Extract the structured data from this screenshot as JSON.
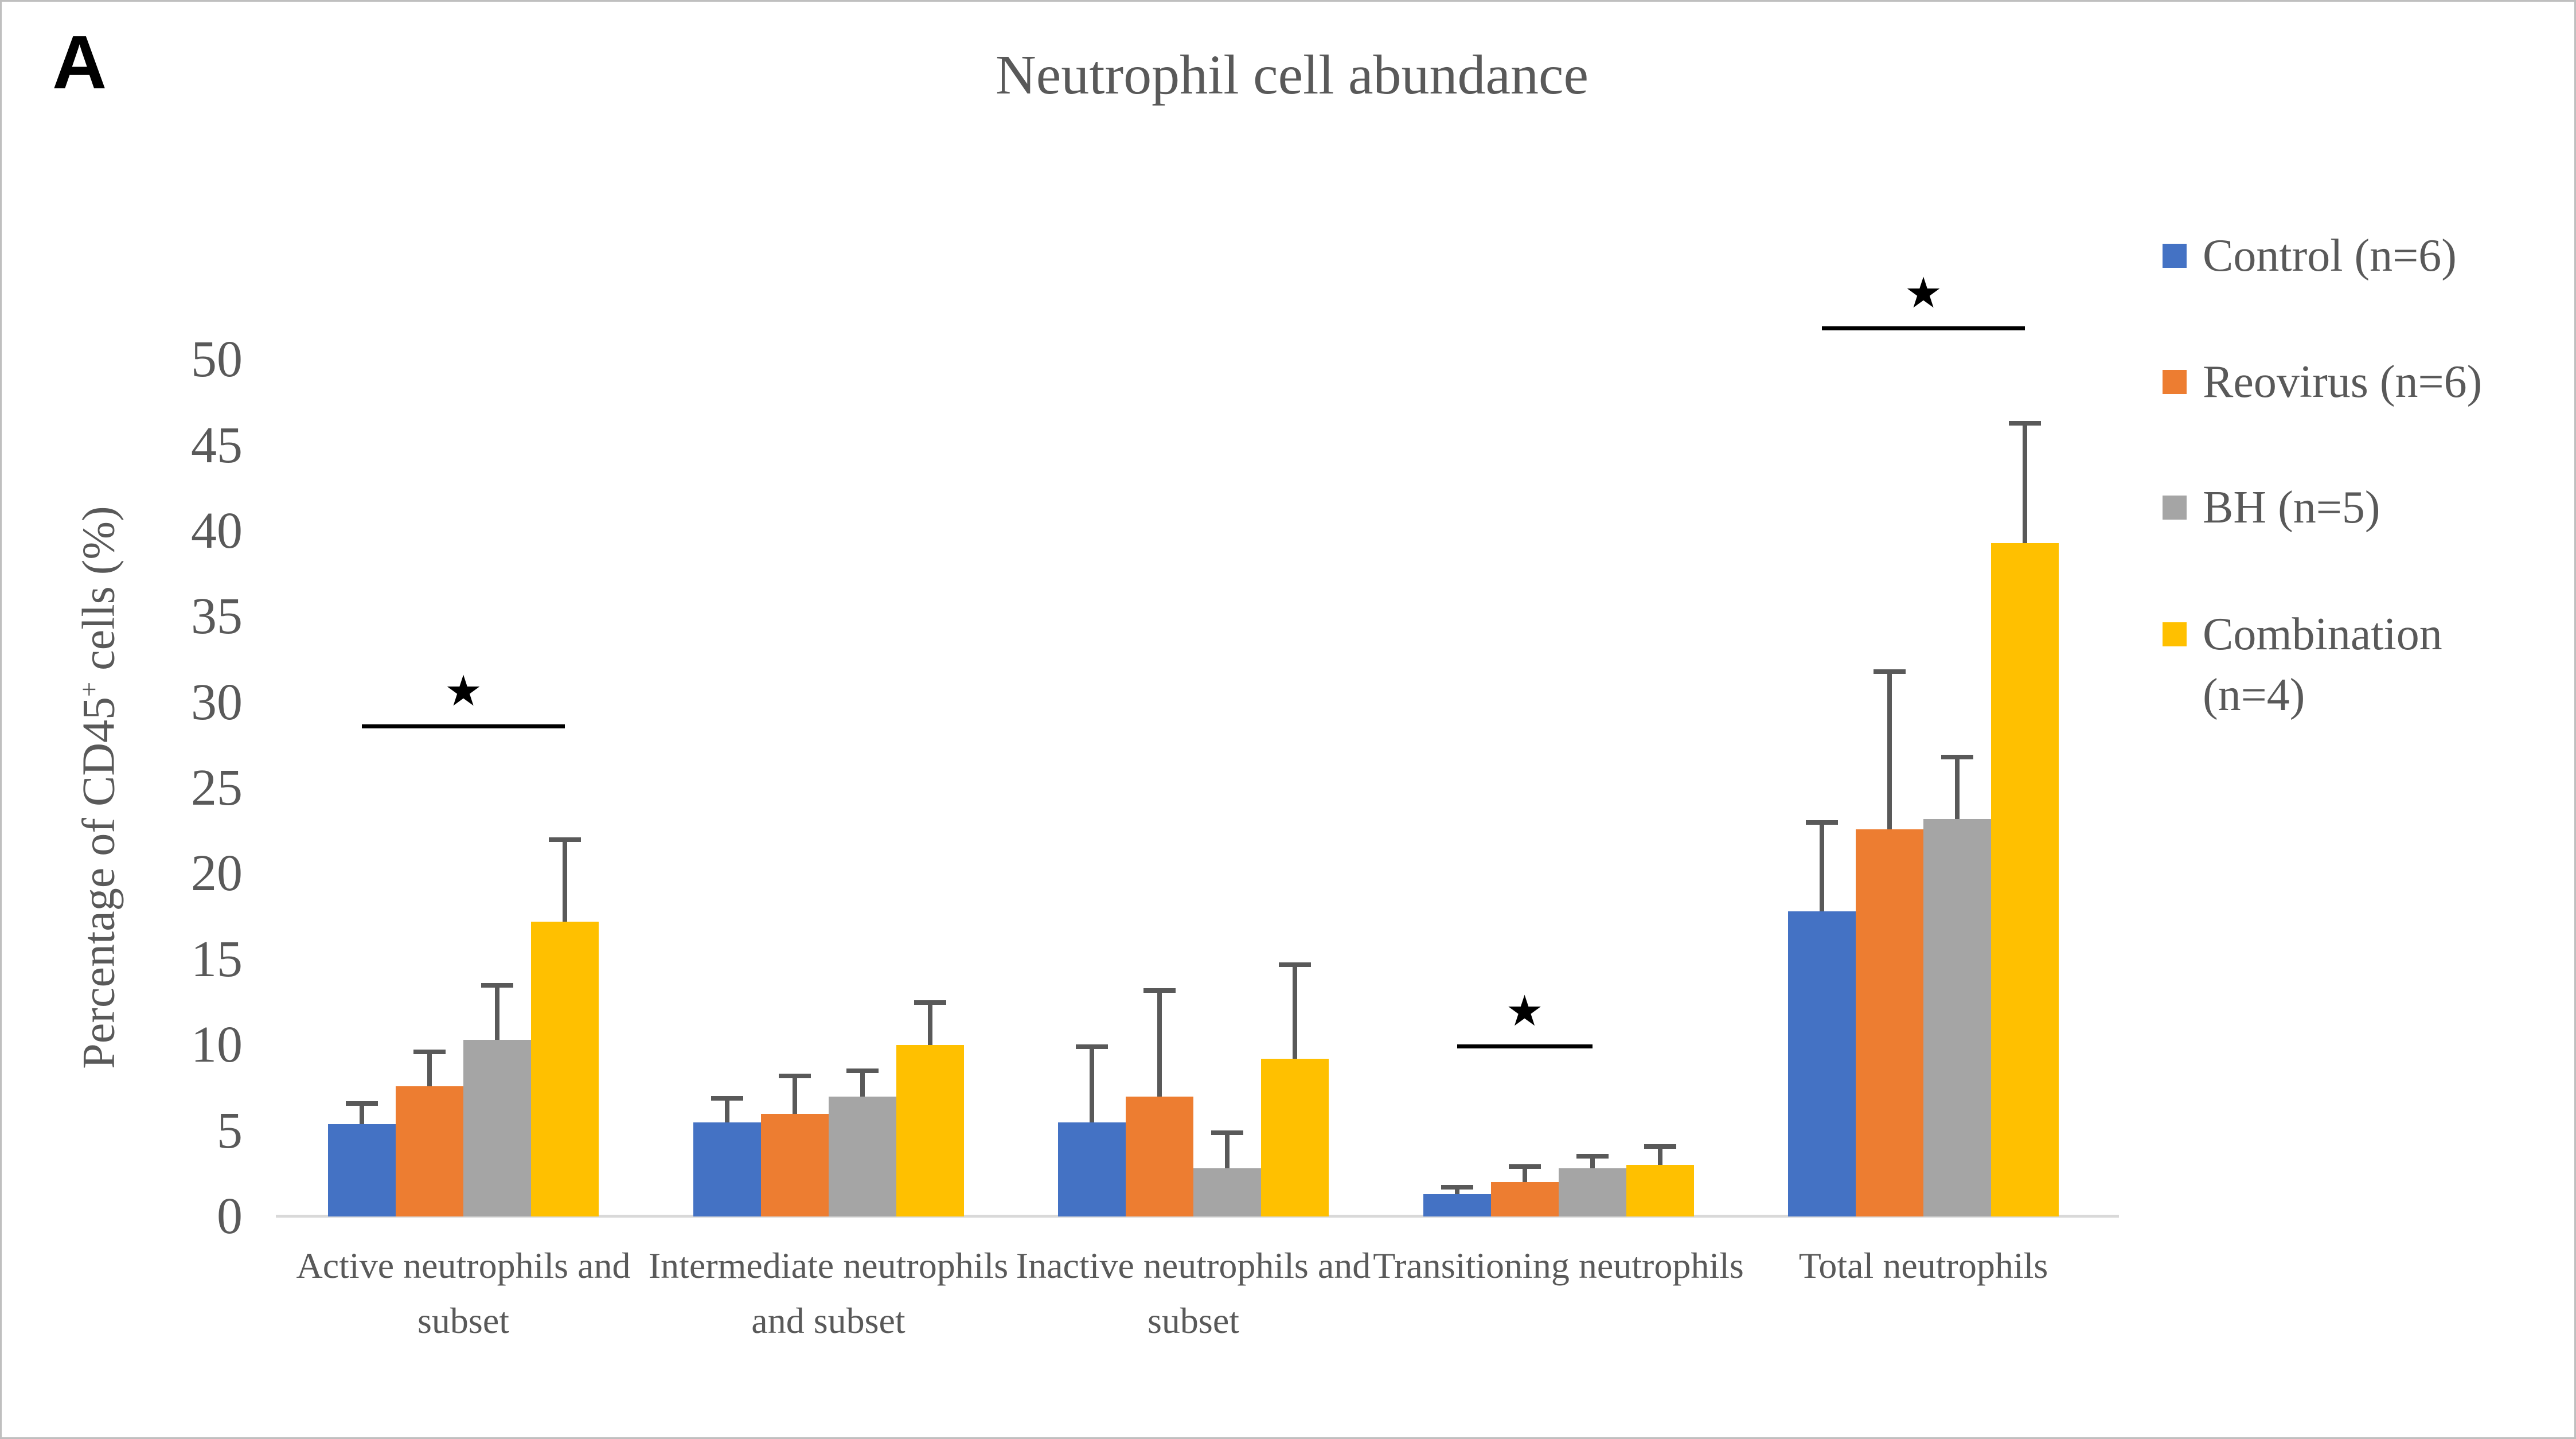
{
  "panel_label": "A",
  "y_axis": {
    "label_prefix": "Percentage of CD45",
    "label_sup": "+",
    "label_suffix": " cells (%)",
    "ticks": [
      0,
      5,
      10,
      15,
      20,
      25,
      30,
      35,
      40,
      45,
      50
    ]
  },
  "colors": {
    "control_blue": "#4472C4",
    "reovirus_orange": "#ED7D31",
    "bh_gray": "#A5A5A5",
    "combination_yellow": "#FFC000",
    "error_bar": "#595959",
    "axis_line": "#D9D9D9",
    "text": "#595959",
    "significance": "#000000"
  },
  "chart_data": {
    "type": "bar",
    "title": "Neutrophil cell abundance",
    "ylabel": "Percentage of CD45+ cells (%)",
    "ylim": [
      0,
      50
    ],
    "ytick_step": 5,
    "grid": false,
    "legend_position": "right",
    "categories": [
      "Active neutrophils and subset",
      "Intermediate neutrophils and subset",
      "Inactive neutrophils and subset",
      "Transitioning neutrophils",
      "Total neutrophils"
    ],
    "series": [
      {
        "name": "Control (n=6)",
        "color": "#4472C4",
        "values": [
          5.4,
          5.5,
          5.5,
          1.3,
          17.8
        ],
        "errors_plus": [
          1.2,
          1.4,
          4.4,
          0.4,
          5.2
        ]
      },
      {
        "name": "Reovirus (n=6)",
        "color": "#ED7D31",
        "values": [
          7.6,
          6.0,
          7.0,
          2.0,
          22.6
        ],
        "errors_plus": [
          2.0,
          2.2,
          6.2,
          0.9,
          9.2
        ]
      },
      {
        "name": "BH (n=5)",
        "color": "#A5A5A5",
        "values": [
          10.3,
          7.0,
          2.8,
          2.8,
          23.2
        ],
        "errors_plus": [
          3.2,
          1.5,
          2.1,
          0.7,
          3.6
        ]
      },
      {
        "name": "Combination (n=4)",
        "color": "#FFC000",
        "values": [
          17.2,
          10.0,
          9.2,
          3.0,
          39.3
        ],
        "errors_plus": [
          4.8,
          2.5,
          5.5,
          1.1,
          7.0
        ]
      }
    ],
    "significance": [
      {
        "category_index": 0,
        "from_series": 0,
        "to_series": 3,
        "y": 28.6,
        "marker": "★"
      },
      {
        "category_index": 3,
        "from_series": 0,
        "to_series": 2,
        "y": 9.9,
        "marker": "★"
      },
      {
        "category_index": 4,
        "from_series": 0,
        "to_series": 3,
        "y": 51.8,
        "marker": "★"
      }
    ]
  }
}
